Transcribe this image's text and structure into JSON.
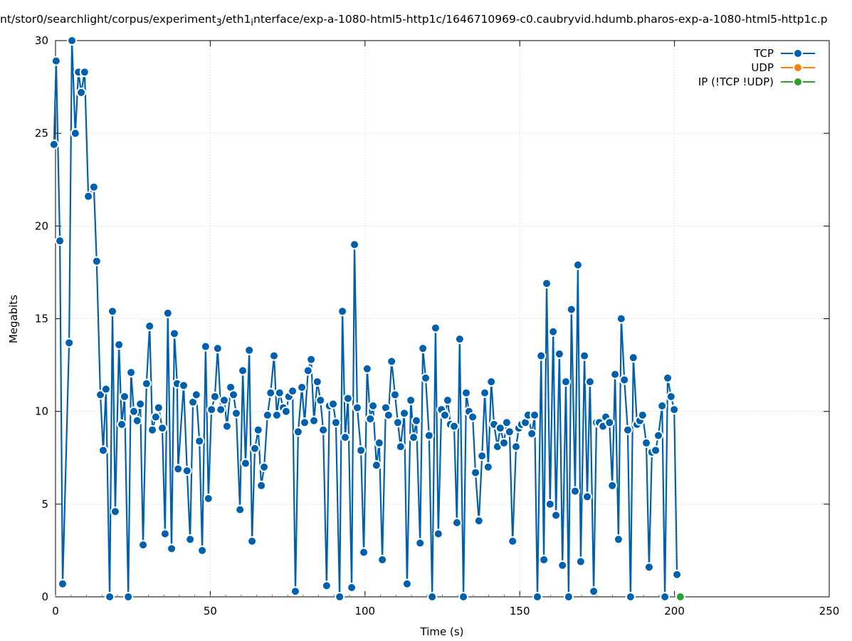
{
  "chart_data": {
    "type": "line",
    "title_parts": [
      "nt/stor0/searchlight/corpus/experiment",
      "3",
      "/eth1",
      "i",
      "nterface/exp-a-1080-html5-http1c/1646710969-c0.caubryvid.hdumb.pharos-exp-a-1080-html5-http1c.p"
    ],
    "xlabel": "Time (s)",
    "ylabel": "Megabits",
    "xlim": [
      0,
      250
    ],
    "ylim": [
      0,
      30
    ],
    "xticks": [
      0,
      50,
      100,
      150,
      200,
      250
    ],
    "yticks": [
      0,
      5,
      10,
      15,
      20,
      25,
      30
    ],
    "grid": true,
    "legend_position": "top-right",
    "series": [
      {
        "name": "TCP",
        "color": "#0060ad",
        "x": [
          -0.5,
          0.2,
          1.4,
          2.3,
          4.4,
          5.3,
          6.4,
          7.4,
          8.3,
          9.4,
          10.6,
          12.4,
          13.3,
          14.5,
          15.4,
          16.3,
          17.5,
          18.4,
          19.3,
          20.5,
          21.4,
          22.3,
          23.5,
          24.4,
          25.3,
          26.4,
          27.4,
          28.3,
          29.4,
          30.4,
          31.3,
          32.4,
          33.3,
          34.5,
          35.4,
          36.3,
          37.5,
          38.4,
          39.3,
          39.6,
          41.4,
          42.5,
          43.5,
          44.4,
          45.5,
          46.5,
          47.4,
          48.5,
          49.4,
          50.4,
          51.5,
          52.4,
          53.4,
          54.5,
          55.4,
          56.6,
          57.5,
          58.4,
          59.6,
          60.5,
          61.4,
          62.6,
          63.5,
          64.4,
          65.5,
          66.5,
          67.4,
          68.5,
          69.5,
          70.6,
          71.5,
          72.4,
          73.6,
          74.5,
          75.4,
          76.6,
          77.5,
          78.4,
          79.6,
          80.5,
          81.6,
          82.6,
          83.5,
          84.6,
          85.6,
          86.5,
          87.6,
          88.5,
          89.7,
          90.6,
          91.8,
          92.7,
          93.6,
          94.5,
          95.7,
          96.6,
          97.5,
          98.7,
          99.6,
          100.7,
          101.7,
          102.6,
          103.7,
          104.6,
          105.6,
          106.7,
          107.6,
          108.6,
          109.7,
          110.6,
          111.5,
          112.7,
          113.6,
          114.8,
          115.7,
          116.6,
          117.8,
          118.7,
          119.6,
          120.7,
          121.7,
          122.8,
          123.7,
          124.7,
          125.8,
          126.7,
          127.6,
          128.8,
          129.7,
          130.6,
          131.8,
          132.7,
          133.6,
          134.8,
          135.7,
          136.8,
          137.8,
          138.7,
          139.8,
          140.8,
          141.7,
          142.8,
          143.7,
          144.9,
          145.8,
          146.7,
          147.7,
          148.8,
          149.7,
          150.6,
          151.8,
          152.7,
          153.9,
          154.8,
          155.7,
          156.9,
          157.8,
          158.7,
          159.8,
          160.8,
          161.7,
          162.8,
          163.8,
          164.9,
          165.8,
          166.7,
          167.9,
          168.8,
          169.7,
          170.9,
          171.8,
          172.7,
          173.9,
          174.8,
          175.7,
          176.9,
          177.8,
          179.0,
          179.9,
          180.8,
          181.9,
          182.8,
          183.8,
          184.9,
          185.8,
          186.7,
          187.9,
          188.8,
          189.7,
          190.9,
          191.8,
          192.7,
          193.9,
          194.8,
          196.0,
          196.9,
          197.8,
          198.9,
          199.9,
          200.8
        ],
        "y": [
          24.4,
          28.9,
          19.2,
          0.7,
          13.7,
          30.0,
          25.0,
          28.3,
          27.2,
          28.3,
          21.6,
          22.1,
          18.1,
          10.9,
          7.9,
          11.2,
          0,
          15.4,
          4.6,
          13.6,
          9.3,
          10.8,
          0,
          12.1,
          10.0,
          9.5,
          10.4,
          2.8,
          11.5,
          14.6,
          9.0,
          9.7,
          10.2,
          9.1,
          3.4,
          15.3,
          2.6,
          14.2,
          11.5,
          6.9,
          11.4,
          6.8,
          3.1,
          10.5,
          10.9,
          8.4,
          2.5,
          13.5,
          5.3,
          10.1,
          10.8,
          13.4,
          10.1,
          10.6,
          9.2,
          11.3,
          10.9,
          9.9,
          4.7,
          12.2,
          7.2,
          13.3,
          3.0,
          8.0,
          9.0,
          6.0,
          7.0,
          9.8,
          11.0,
          13.0,
          9.8,
          11.0,
          10.2,
          10.0,
          10.8,
          11.1,
          0.3,
          8.9,
          11.3,
          9.4,
          12.2,
          12.8,
          9.5,
          11.6,
          10.6,
          9.0,
          0.6,
          10.3,
          10.4,
          9.4,
          0,
          15.4,
          8.6,
          10.7,
          0.5,
          19.0,
          10.2,
          7.9,
          2.4,
          12.3,
          9.6,
          10.3,
          7.1,
          8.3,
          2.0,
          10.2,
          9.8,
          12.7,
          10.9,
          9.4,
          8.1,
          9.9,
          0.7,
          10.6,
          8.6,
          9.5,
          2.9,
          13.4,
          11.8,
          8.7,
          0,
          14.5,
          3.4,
          10.1,
          9.8,
          10.6,
          9.3,
          9.2,
          4.0,
          13.9,
          0,
          11.0,
          10.0,
          9.7,
          6.7,
          4.1,
          7.6,
          11.0,
          7.0,
          11.6,
          9.3,
          8.1,
          9.1,
          8.3,
          9.4,
          8.9,
          3.0,
          8.1,
          9.1,
          9.3,
          9.4,
          9.8,
          8.8,
          9.8,
          0,
          13.0,
          2.0,
          16.9,
          5.0,
          14.3,
          4.4,
          13.1,
          1.7,
          11.6,
          0,
          15.5,
          5.7,
          17.9,
          1.9,
          13.0,
          5.4,
          11.6,
          0.3,
          9.4,
          9.4,
          9.2,
          9.7,
          9.4,
          6.0,
          12.0,
          3.1,
          15.0,
          11.7,
          9.0,
          0,
          12.9,
          9.3,
          9.5,
          9.8,
          8.3,
          1.6,
          7.8,
          7.9,
          8.7,
          10.3,
          0,
          11.8,
          10.8,
          10.1,
          1.2
        ]
      },
      {
        "name": "UDP",
        "color": "#ff7f0e",
        "x": [],
        "y": []
      },
      {
        "name": "IP (!TCP  !UDP)",
        "color": "#2ca02c",
        "x": [
          201.9
        ],
        "y": [
          0
        ]
      }
    ]
  }
}
